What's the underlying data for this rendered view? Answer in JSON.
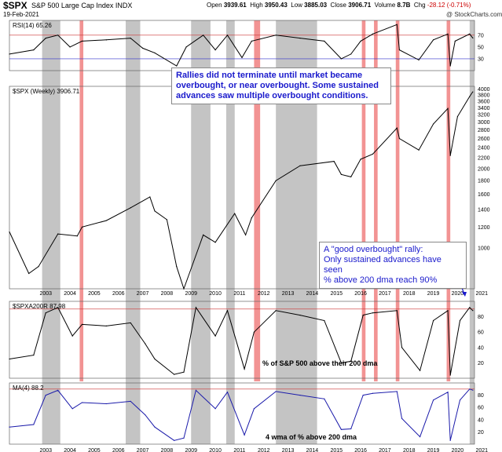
{
  "header": {
    "symbol": "$SPX",
    "name": "S&P 500 Large Cap Index INDX",
    "date": "19-Feb-2021",
    "open_label": "Open",
    "open": "3939.61",
    "high_label": "High",
    "high": "3950.43",
    "low_label": "Low",
    "low": "3885.03",
    "close_label": "Close",
    "close": "3906.71",
    "volume_label": "Volume",
    "volume": "8.7B",
    "chg_label": "Chg",
    "chg": "-28.12 (-0.71%)",
    "source": "@ StockCharts.com"
  },
  "annotations": {
    "rallies_line1": "Rallies did not terminate until market became",
    "rallies_line2": "overbought, or near overbought. Some sustained",
    "rallies_line3": "advances saw multiple overbought conditions.",
    "good_line1": "A \"good overbought\" rally:",
    "good_line2": "Only sustained advances have seen",
    "good_line3": "% above 200 dma reach 90%",
    "pct_caption": "% of S&P 500 above their 200 dma",
    "wma_caption": "4 wma of % above 200 dma"
  },
  "colors": {
    "gray_band": "#b0b0b0",
    "red_band": "#f08080",
    "price_line": "#000000",
    "wma_line": "#1a1aaa",
    "annotation_text": "#1a1acc"
  },
  "chart_data": [
    {
      "type": "line",
      "panel": "rsi",
      "legend": "RSI(14) 65.26",
      "y_ticks": [
        30,
        50,
        70
      ],
      "ylim": [
        10,
        95
      ],
      "reference_lines": [
        30,
        70
      ],
      "x": [
        2002.0,
        2003.0,
        2003.5,
        2004.0,
        2004.5,
        2005.0,
        2006.0,
        2007.0,
        2007.5,
        2008.0,
        2008.9,
        2009.3,
        2010.0,
        2010.5,
        2011.0,
        2011.6,
        2012.0,
        2013.0,
        2014.0,
        2015.0,
        2015.7,
        2016.1,
        2016.5,
        2017.0,
        2018.0,
        2018.1,
        2018.9,
        2019.5,
        2020.1,
        2020.2,
        2020.4,
        2021.0,
        2021.13
      ],
      "values": [
        38,
        45,
        65,
        70,
        50,
        60,
        62,
        65,
        48,
        40,
        18,
        50,
        70,
        45,
        70,
        32,
        60,
        70,
        65,
        60,
        30,
        38,
        60,
        72,
        88,
        45,
        28,
        62,
        72,
        18,
        60,
        72,
        65.26
      ]
    },
    {
      "type": "line",
      "panel": "price",
      "legend": "$SPX (Weekly) 3906.71",
      "y_ticks": [
        1000,
        1200,
        1400,
        1600,
        1800,
        2000,
        2200,
        2400,
        2600,
        2800,
        3000,
        3200,
        3400,
        3600,
        3800,
        4000
      ],
      "ylim": [
        700,
        4100
      ],
      "log_scale": true,
      "x": [
        2002.0,
        2002.8,
        2003.2,
        2004.0,
        2004.8,
        2005.0,
        2006.0,
        2007.0,
        2007.8,
        2008.0,
        2008.5,
        2008.9,
        2009.2,
        2010.0,
        2010.5,
        2011.3,
        2011.75,
        2012.0,
        2013.0,
        2014.0,
        2015.4,
        2015.7,
        2016.1,
        2016.5,
        2017.0,
        2018.0,
        2018.1,
        2018.9,
        2019.5,
        2020.1,
        2020.2,
        2020.5,
        2021.0,
        2021.13
      ],
      "values": [
        1150,
        800,
        850,
        1130,
        1110,
        1200,
        1270,
        1420,
        1560,
        1380,
        1280,
        850,
        700,
        1120,
        1050,
        1350,
        1120,
        1300,
        1800,
        2050,
        2130,
        1900,
        1860,
        2170,
        2270,
        2850,
        2600,
        2350,
        2950,
        3380,
        2240,
        3150,
        3750,
        3906.71
      ]
    },
    {
      "type": "line",
      "panel": "pct_above_200dma",
      "legend": "$SPXA200R 87.98",
      "y_ticks": [
        20,
        40,
        60,
        80
      ],
      "ylim": [
        0,
        100
      ],
      "reference_lines": [
        90
      ],
      "x": [
        2002.0,
        2003.0,
        2003.5,
        2004.0,
        2004.6,
        2005.0,
        2006.0,
        2007.0,
        2007.6,
        2008.0,
        2008.8,
        2009.2,
        2009.7,
        2010.5,
        2011.0,
        2011.7,
        2012.1,
        2013.0,
        2014.0,
        2015.0,
        2015.7,
        2016.1,
        2016.6,
        2017.0,
        2018.0,
        2018.2,
        2018.95,
        2019.5,
        2020.1,
        2020.2,
        2020.6,
        2021.0,
        2021.13
      ],
      "values": [
        25,
        30,
        85,
        92,
        55,
        70,
        68,
        72,
        45,
        25,
        5,
        8,
        92,
        55,
        88,
        12,
        60,
        88,
        82,
        75,
        20,
        22,
        82,
        85,
        88,
        40,
        10,
        75,
        88,
        4,
        75,
        92,
        87.98
      ]
    },
    {
      "type": "line",
      "panel": "wma",
      "legend": "MA(4) 88.2",
      "y_ticks": [
        20,
        40,
        60,
        80
      ],
      "ylim": [
        0,
        100
      ],
      "reference_lines": [
        90
      ],
      "x": [
        2002.0,
        2003.0,
        2003.5,
        2004.0,
        2004.6,
        2005.0,
        2006.0,
        2007.0,
        2007.6,
        2008.0,
        2008.8,
        2009.2,
        2009.7,
        2010.5,
        2011.0,
        2011.7,
        2012.1,
        2013.0,
        2014.0,
        2015.0,
        2015.7,
        2016.1,
        2016.6,
        2017.0,
        2018.0,
        2018.2,
        2018.95,
        2019.5,
        2020.1,
        2020.2,
        2020.6,
        2021.0,
        2021.13
      ],
      "values": [
        28,
        32,
        80,
        88,
        58,
        68,
        66,
        70,
        48,
        28,
        6,
        10,
        88,
        58,
        85,
        15,
        58,
        86,
        80,
        74,
        24,
        25,
        80,
        83,
        86,
        42,
        12,
        72,
        85,
        6,
        72,
        90,
        88.2
      ]
    }
  ],
  "x_axis": {
    "ticks": [
      "2003",
      "2004",
      "2005",
      "2006",
      "2007",
      "2008",
      "2009",
      "2010",
      "2011",
      "2012",
      "2013",
      "2014",
      "2015",
      "2016",
      "2017",
      "2018",
      "2019",
      "2020",
      "2021"
    ],
    "range": [
      2002.0,
      2021.2
    ]
  },
  "gray_bands": [
    [
      2003.35,
      2004.1
    ],
    [
      2006.8,
      2007.4
    ],
    [
      2009.5,
      2010.3
    ],
    [
      2010.95,
      2011.3
    ],
    [
      2013.0,
      2014.7
    ],
    [
      2021.0,
      2021.2
    ]
  ],
  "red_bands": [
    [
      2004.9,
      2005.05
    ],
    [
      2012.1,
      2012.35
    ],
    [
      2016.55,
      2016.7
    ],
    [
      2017.05,
      2017.2
    ],
    [
      2017.95,
      2018.1
    ],
    [
      2020.05,
      2020.2
    ]
  ]
}
